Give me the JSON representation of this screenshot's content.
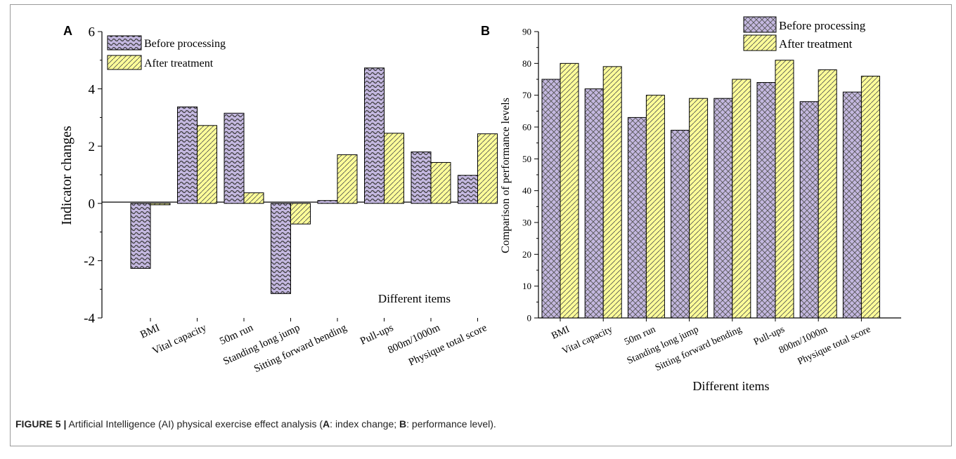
{
  "colors": {
    "before_fill": "#c4b8e0",
    "after_fill": "#ffff99",
    "stroke": "#000000",
    "hatch": "#3a3a3a"
  },
  "chart_data": [
    {
      "panel_label": "A",
      "type": "bar",
      "categories": [
        "BMI",
        "Vital capacity",
        "50m run",
        "Standing long jump",
        "Sitting forward bending",
        "Pull-ups",
        "800m/1000m",
        "Physique total score"
      ],
      "series": [
        {
          "name": "Before processing",
          "values": [
            -2.27,
            3.37,
            3.15,
            -3.15,
            0.1,
            4.73,
            1.8,
            0.98
          ]
        },
        {
          "name": "After treatment",
          "values": [
            -0.05,
            2.72,
            0.37,
            -0.72,
            1.7,
            2.45,
            1.43,
            2.43
          ]
        }
      ],
      "xlabel": "Different items",
      "ylabel": "Indicator changes",
      "ylim": [
        -4,
        6
      ],
      "yticks": [
        "-4",
        "-2",
        "0",
        "2",
        "4",
        "6"
      ],
      "legend": "top-left",
      "grid": false
    },
    {
      "panel_label": "B",
      "type": "bar",
      "categories": [
        "BMI",
        "Vital capacity",
        "50m run",
        "Standing long jump",
        "Sitting forward bending",
        "Pull-ups",
        "800m/1000m",
        "Physique total score"
      ],
      "series": [
        {
          "name": "Before processing",
          "values": [
            75,
            72,
            63,
            59,
            69,
            74,
            68,
            71
          ]
        },
        {
          "name": "After treatment",
          "values": [
            80,
            79,
            70,
            69,
            75,
            81,
            78,
            76
          ]
        }
      ],
      "xlabel": "Different items",
      "ylabel": "Comparison of performance levels",
      "ylim": [
        0,
        90
      ],
      "yticks": [
        "0",
        "10",
        "20",
        "30",
        "40",
        "50",
        "60",
        "70",
        "80",
        "90"
      ],
      "legend": "top-center",
      "grid": false
    }
  ],
  "caption": {
    "prefix": "FIGURE 5 |",
    "text_1": " Artificial Intelligence (AI) physical exercise effect analysis (",
    "a_label": "A",
    "text_2": ": index change; ",
    "b_label": "B",
    "text_3": ": performance level)."
  }
}
